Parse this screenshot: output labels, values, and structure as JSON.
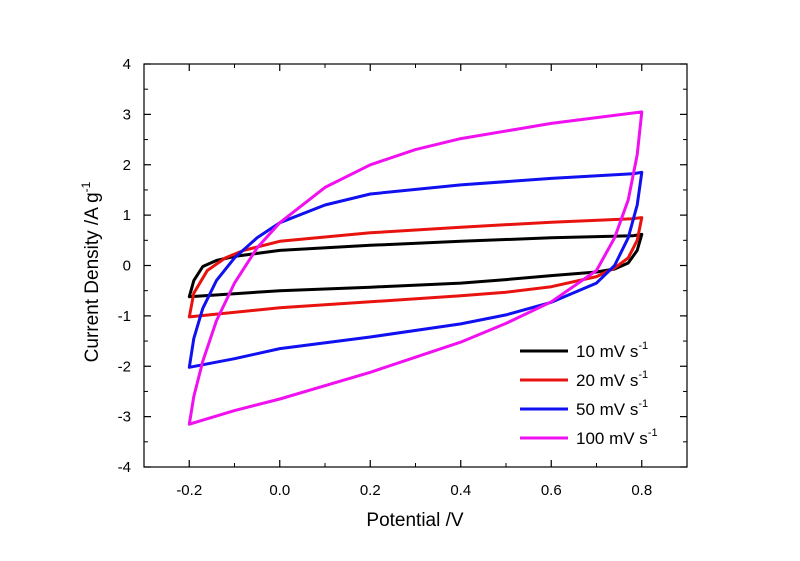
{
  "chart_data": {
    "type": "line",
    "title": "",
    "xlabel": "Potential /V",
    "ylabel": "Current Density /A g",
    "ylabel_sup": "-1",
    "xlim": [
      -0.3,
      0.9
    ],
    "ylim": [
      -4,
      4
    ],
    "x_ticks": [
      "-0.2",
      "0.0",
      "0.2",
      "0.4",
      "0.6",
      "0.8"
    ],
    "y_ticks": [
      "-4",
      "-3",
      "-2",
      "-1",
      "0",
      "1",
      "2",
      "3",
      "4"
    ],
    "grid": false,
    "legend_position": "lower-right",
    "series": [
      {
        "name": "10  mV s",
        "name_sup": "-1",
        "color": "#000000",
        "forward": [
          [
            -0.2,
            -0.62
          ],
          [
            -0.19,
            -0.3
          ],
          [
            -0.17,
            -0.02
          ],
          [
            -0.14,
            0.1
          ],
          [
            -0.1,
            0.18
          ],
          [
            0.0,
            0.3
          ],
          [
            0.2,
            0.4
          ],
          [
            0.4,
            0.48
          ],
          [
            0.6,
            0.55
          ],
          [
            0.78,
            0.59
          ],
          [
            0.8,
            0.62
          ]
        ],
        "reverse": [
          [
            0.8,
            0.62
          ],
          [
            0.79,
            0.3
          ],
          [
            0.77,
            0.05
          ],
          [
            0.74,
            -0.07
          ],
          [
            0.7,
            -0.13
          ],
          [
            0.6,
            -0.2
          ],
          [
            0.5,
            -0.28
          ],
          [
            0.4,
            -0.35
          ],
          [
            0.2,
            -0.43
          ],
          [
            0.0,
            -0.5
          ],
          [
            -0.2,
            -0.62
          ]
        ]
      },
      {
        "name": "20  mV s",
        "name_sup": "-1",
        "color": "#e8130f",
        "forward": [
          [
            -0.2,
            -1.02
          ],
          [
            -0.19,
            -0.55
          ],
          [
            -0.16,
            -0.1
          ],
          [
            -0.12,
            0.15
          ],
          [
            -0.08,
            0.3
          ],
          [
            0.0,
            0.48
          ],
          [
            0.2,
            0.65
          ],
          [
            0.4,
            0.76
          ],
          [
            0.6,
            0.86
          ],
          [
            0.78,
            0.93
          ],
          [
            0.8,
            0.95
          ]
        ],
        "reverse": [
          [
            0.8,
            0.95
          ],
          [
            0.79,
            0.5
          ],
          [
            0.77,
            0.15
          ],
          [
            0.74,
            -0.05
          ],
          [
            0.7,
            -0.22
          ],
          [
            0.6,
            -0.42
          ],
          [
            0.5,
            -0.53
          ],
          [
            0.4,
            -0.6
          ],
          [
            0.2,
            -0.72
          ],
          [
            0.0,
            -0.84
          ],
          [
            -0.2,
            -1.02
          ]
        ]
      },
      {
        "name": "50  mV s",
        "name_sup": "-1",
        "color": "#1010f0",
        "forward": [
          [
            -0.2,
            -2.02
          ],
          [
            -0.19,
            -1.45
          ],
          [
            -0.17,
            -0.85
          ],
          [
            -0.14,
            -0.3
          ],
          [
            -0.1,
            0.15
          ],
          [
            -0.05,
            0.55
          ],
          [
            0.0,
            0.85
          ],
          [
            0.1,
            1.2
          ],
          [
            0.2,
            1.42
          ],
          [
            0.4,
            1.6
          ],
          [
            0.6,
            1.73
          ],
          [
            0.78,
            1.82
          ],
          [
            0.8,
            1.85
          ]
        ],
        "reverse": [
          [
            0.8,
            1.85
          ],
          [
            0.79,
            1.2
          ],
          [
            0.77,
            0.55
          ],
          [
            0.74,
            0.0
          ],
          [
            0.7,
            -0.35
          ],
          [
            0.6,
            -0.73
          ],
          [
            0.5,
            -0.98
          ],
          [
            0.4,
            -1.16
          ],
          [
            0.2,
            -1.42
          ],
          [
            0.0,
            -1.65
          ],
          [
            -0.1,
            -1.85
          ],
          [
            -0.2,
            -2.02
          ]
        ]
      },
      {
        "name": "100 mV s",
        "name_sup": "-1",
        "color": "#f010f0",
        "forward": [
          [
            -0.2,
            -3.15
          ],
          [
            -0.19,
            -2.6
          ],
          [
            -0.17,
            -1.9
          ],
          [
            -0.14,
            -1.1
          ],
          [
            -0.1,
            -0.35
          ],
          [
            -0.05,
            0.35
          ],
          [
            0.0,
            0.85
          ],
          [
            0.1,
            1.55
          ],
          [
            0.2,
            2.0
          ],
          [
            0.3,
            2.3
          ],
          [
            0.4,
            2.52
          ],
          [
            0.6,
            2.82
          ],
          [
            0.8,
            3.05
          ]
        ],
        "reverse": [
          [
            0.8,
            3.05
          ],
          [
            0.79,
            2.2
          ],
          [
            0.77,
            1.3
          ],
          [
            0.74,
            0.55
          ],
          [
            0.7,
            -0.1
          ],
          [
            0.6,
            -0.72
          ],
          [
            0.5,
            -1.15
          ],
          [
            0.4,
            -1.52
          ],
          [
            0.3,
            -1.82
          ],
          [
            0.2,
            -2.12
          ],
          [
            0.0,
            -2.65
          ],
          [
            -0.1,
            -2.88
          ],
          [
            -0.2,
            -3.15
          ]
        ]
      }
    ]
  }
}
